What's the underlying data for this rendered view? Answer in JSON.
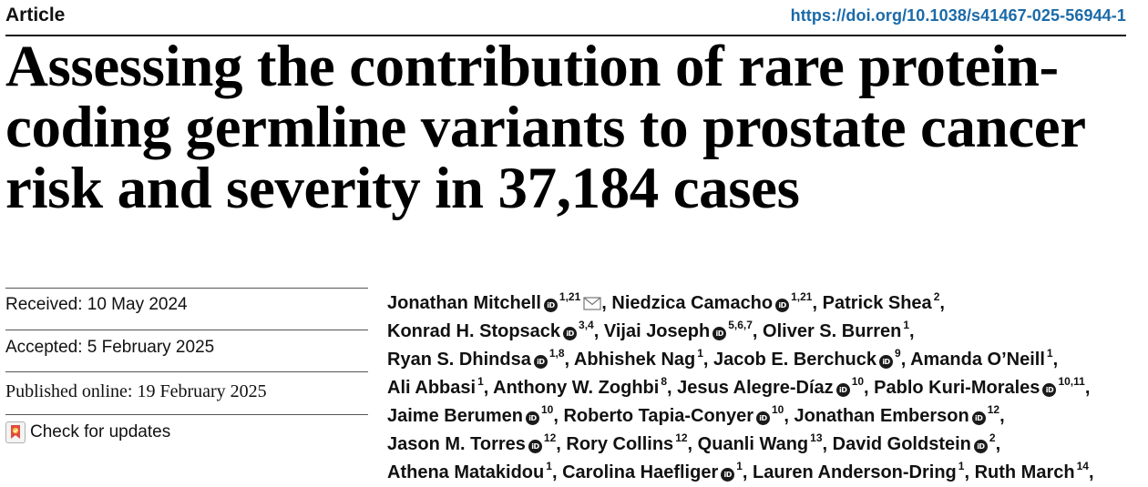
{
  "header": {
    "article_label": "Article",
    "doi": "https://doi.org/10.1038/s41467-025-56944-1"
  },
  "title": "Assessing the contribution of rare protein-coding germline variants to prostate cancer risk and severity in 37,184 cases",
  "dates": {
    "received": "Received: 10 May 2024",
    "accepted": "Accepted: 5 February 2025",
    "published": "Published online: 19 February 2025"
  },
  "check_updates": {
    "label": "Check for updates",
    "icon": "check-for-updates-icon"
  },
  "orcid_badge": "iD",
  "authors": [
    [
      {
        "name": "Jonathan Mitchell",
        "orcid": true,
        "aff": "1,21",
        "mail": true,
        "sep": ", "
      },
      {
        "name": "Niedzica Camacho",
        "orcid": true,
        "aff": "1,21",
        "sep": ", "
      },
      {
        "name": "Patrick Shea",
        "orcid": false,
        "aff": "2",
        "sep": ","
      }
    ],
    [
      {
        "name": "Konrad H. Stopsack",
        "orcid": true,
        "aff": "3,4",
        "sep": ", "
      },
      {
        "name": "Vijai Joseph",
        "orcid": true,
        "aff": "5,6,7",
        "sep": ", "
      },
      {
        "name": "Oliver S. Burren",
        "orcid": false,
        "aff": "1",
        "sep": ","
      }
    ],
    [
      {
        "name": "Ryan S. Dhindsa",
        "orcid": true,
        "aff": "1,8",
        "sep": ", "
      },
      {
        "name": "Abhishek Nag",
        "orcid": false,
        "aff": "1",
        "sep": ", "
      },
      {
        "name": "Jacob E. Berchuck",
        "orcid": true,
        "aff": "9",
        "sep": ", "
      },
      {
        "name": "Amanda O’Neill",
        "orcid": false,
        "aff": "1",
        "sep": ","
      }
    ],
    [
      {
        "name": "Ali Abbasi",
        "orcid": false,
        "aff": "1",
        "sep": ", "
      },
      {
        "name": "Anthony W. Zoghbi",
        "orcid": false,
        "aff": "8",
        "sep": ", "
      },
      {
        "name": "Jesus Alegre-Díaz",
        "orcid": true,
        "aff": "10",
        "sep": ", "
      },
      {
        "name": "Pablo Kuri-Morales",
        "orcid": true,
        "aff": "10,11",
        "sep": ","
      }
    ],
    [
      {
        "name": "Jaime Berumen",
        "orcid": true,
        "aff": "10",
        "sep": ", "
      },
      {
        "name": "Roberto Tapia-Conyer",
        "orcid": true,
        "aff": "10",
        "sep": ", "
      },
      {
        "name": "Jonathan Emberson",
        "orcid": true,
        "aff": "12",
        "sep": ","
      }
    ],
    [
      {
        "name": "Jason M. Torres",
        "orcid": true,
        "aff": "12",
        "sep": ", "
      },
      {
        "name": "Rory Collins",
        "orcid": false,
        "aff": "12",
        "sep": ", "
      },
      {
        "name": "Quanli Wang",
        "orcid": false,
        "aff": "13",
        "sep": ", "
      },
      {
        "name": "David Goldstein",
        "orcid": true,
        "aff": "2",
        "sep": ","
      }
    ],
    [
      {
        "name": "Athena Matakidou",
        "orcid": false,
        "aff": "1",
        "sep": ", "
      },
      {
        "name": "Carolina Haefliger",
        "orcid": true,
        "aff": "1",
        "sep": ", "
      },
      {
        "name": "Lauren Anderson-Dring",
        "orcid": false,
        "aff": "1",
        "sep": ", "
      },
      {
        "name": "Ruth March",
        "orcid": false,
        "aff": "14",
        "sep": ","
      }
    ]
  ]
}
